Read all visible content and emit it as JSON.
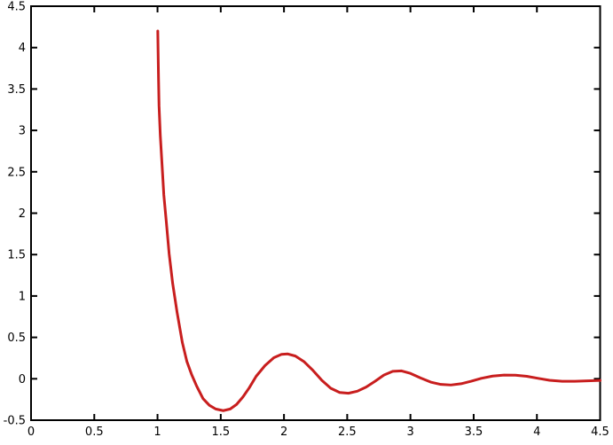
{
  "figure": {
    "background": "#ffffff",
    "frame_color": "#000000",
    "frame_width": 2,
    "tick_length": 7,
    "tick_width": 2
  },
  "chart_data": {
    "type": "line",
    "title": "",
    "xlabel": "",
    "ylabel": "",
    "xlim": [
      0,
      4.5
    ],
    "ylim": [
      -0.5,
      4.5
    ],
    "grid": false,
    "legend": false,
    "tick_style": "inward, mirrored on all four borders",
    "x_tick_values": [
      0,
      0.5,
      1,
      1.5,
      2,
      2.5,
      3,
      3.5,
      4,
      4.5
    ],
    "x_tick_labels": [
      "0",
      "0.5",
      "1",
      "1.5",
      "2",
      "2.5",
      "3",
      "3.5",
      "4",
      "4.5"
    ],
    "y_tick_values": [
      -0.5,
      0,
      0.5,
      1,
      1.5,
      2,
      2.5,
      3,
      3.5,
      4,
      4.5
    ],
    "y_tick_labels": [
      "-0.5",
      "0",
      "0.5",
      "1",
      "1.5",
      "2",
      "2.5",
      "3",
      "3.5",
      "4",
      "4.5"
    ],
    "series": [
      {
        "name": "red-damped-oscillation-curve",
        "color": "#c81e1e",
        "line_width": 3,
        "points": [
          [
            1.002,
            4.2
          ],
          [
            1.004,
            4.0
          ],
          [
            1.008,
            3.62
          ],
          [
            1.012,
            3.3
          ],
          [
            1.022,
            2.94
          ],
          [
            1.036,
            2.58
          ],
          [
            1.05,
            2.22
          ],
          [
            1.071,
            1.87
          ],
          [
            1.092,
            1.51
          ],
          [
            1.12,
            1.15
          ],
          [
            1.155,
            0.8
          ],
          [
            1.196,
            0.44
          ],
          [
            1.232,
            0.21
          ],
          [
            1.27,
            0.05
          ],
          [
            1.31,
            -0.09
          ],
          [
            1.36,
            -0.24
          ],
          [
            1.41,
            -0.32
          ],
          [
            1.46,
            -0.365
          ],
          [
            1.52,
            -0.385
          ],
          [
            1.575,
            -0.365
          ],
          [
            1.625,
            -0.31
          ],
          [
            1.675,
            -0.22
          ],
          [
            1.725,
            -0.11
          ],
          [
            1.78,
            0.03
          ],
          [
            1.85,
            0.16
          ],
          [
            1.92,
            0.255
          ],
          [
            1.98,
            0.295
          ],
          [
            2.03,
            0.3
          ],
          [
            2.09,
            0.275
          ],
          [
            2.16,
            0.205
          ],
          [
            2.23,
            0.1
          ],
          [
            2.3,
            -0.02
          ],
          [
            2.37,
            -0.115
          ],
          [
            2.44,
            -0.165
          ],
          [
            2.51,
            -0.175
          ],
          [
            2.58,
            -0.15
          ],
          [
            2.65,
            -0.1
          ],
          [
            2.72,
            -0.03
          ],
          [
            2.79,
            0.045
          ],
          [
            2.86,
            0.09
          ],
          [
            2.93,
            0.095
          ],
          [
            3.0,
            0.065
          ],
          [
            3.08,
            0.01
          ],
          [
            3.16,
            -0.04
          ],
          [
            3.24,
            -0.068
          ],
          [
            3.32,
            -0.075
          ],
          [
            3.4,
            -0.06
          ],
          [
            3.48,
            -0.03
          ],
          [
            3.56,
            0.005
          ],
          [
            3.65,
            0.033
          ],
          [
            3.74,
            0.045
          ],
          [
            3.83,
            0.043
          ],
          [
            3.92,
            0.03
          ],
          [
            4.01,
            0.005
          ],
          [
            4.1,
            -0.018
          ],
          [
            4.2,
            -0.03
          ],
          [
            4.3,
            -0.03
          ],
          [
            4.4,
            -0.025
          ],
          [
            4.5,
            -0.02
          ]
        ]
      }
    ]
  }
}
